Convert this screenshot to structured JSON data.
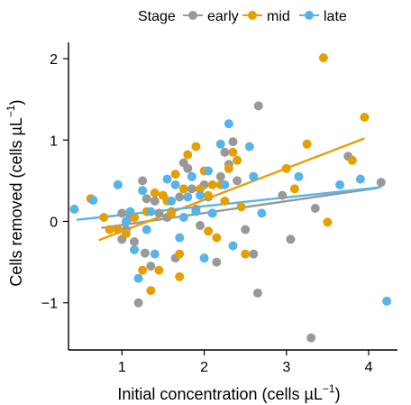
{
  "chart_data": {
    "type": "scatter",
    "title": "",
    "xlabel": "Initial concentration (cells µL",
    "xlabel_sup": "−1",
    "xlabel_close": ")",
    "ylabel": "Cells removed (cells  µL",
    "ylabel_sup": "−1",
    "ylabel_close": ")",
    "xlim": [
      0.35,
      4.35
    ],
    "ylim": [
      -1.58,
      2.2
    ],
    "xticks": [
      1,
      2,
      3,
      4
    ],
    "yticks": [
      -1,
      0,
      1,
      2
    ],
    "xtick_labels": [
      "1",
      "2",
      "3",
      "4"
    ],
    "ytick_labels": [
      "−1",
      "0",
      "1",
      "2"
    ],
    "legend": {
      "title": "Stage",
      "placement": "top"
    },
    "series": [
      {
        "name": "early",
        "color": "#999999",
        "fit": [
          [
            0.75,
            -0.08
          ],
          [
            4.1,
            0.41
          ]
        ],
        "points": [
          [
            0.95,
            0.45
          ],
          [
            1.0,
            0.1
          ],
          [
            1.05,
            -0.1
          ],
          [
            1.1,
            0.05
          ],
          [
            1.15,
            -0.25
          ],
          [
            1.2,
            -1.0
          ],
          [
            1.25,
            0.5
          ],
          [
            1.3,
            0.28
          ],
          [
            1.35,
            -0.55
          ],
          [
            1.4,
            0.25
          ],
          [
            1.45,
            0.1
          ],
          [
            1.5,
            0.32
          ],
          [
            1.55,
            0.05
          ],
          [
            1.6,
            0.12
          ],
          [
            1.65,
            -0.45
          ],
          [
            1.7,
            0.3
          ],
          [
            1.75,
            0.72
          ],
          [
            1.8,
            0.65
          ],
          [
            1.85,
            0.4
          ],
          [
            1.9,
            0.15
          ],
          [
            1.95,
            -0.05
          ],
          [
            2.0,
            0.45
          ],
          [
            2.05,
            0.3
          ],
          [
            2.1,
            0.1
          ],
          [
            2.15,
            -0.5
          ],
          [
            2.2,
            0.55
          ],
          [
            2.25,
            0.85
          ],
          [
            2.3,
            0.7
          ],
          [
            2.35,
            0.98
          ],
          [
            2.4,
            0.5
          ],
          [
            2.5,
            -0.1
          ],
          [
            2.6,
            -0.4
          ],
          [
            2.65,
            -0.88
          ],
          [
            2.66,
            1.42
          ],
          [
            2.95,
            0.32
          ],
          [
            3.05,
            -0.22
          ],
          [
            3.3,
            -1.43
          ],
          [
            3.35,
            0.16
          ],
          [
            3.75,
            0.8
          ],
          [
            4.15,
            0.48
          ],
          [
            1.0,
            -0.22
          ],
          [
            1.28,
            -0.39
          ]
        ]
      },
      {
        "name": "mid",
        "color": "#E69F00",
        "fit": [
          [
            0.72,
            -0.23
          ],
          [
            3.95,
            1.02
          ]
        ],
        "points": [
          [
            0.62,
            0.28
          ],
          [
            0.78,
            0.05
          ],
          [
            0.85,
            -0.1
          ],
          [
            0.95,
            -0.1
          ],
          [
            1.05,
            -0.15
          ],
          [
            1.15,
            0.05
          ],
          [
            1.25,
            -0.6
          ],
          [
            1.3,
            0.12
          ],
          [
            1.35,
            -0.85
          ],
          [
            1.4,
            0.35
          ],
          [
            1.45,
            -0.6
          ],
          [
            1.5,
            0.32
          ],
          [
            1.55,
            0.25
          ],
          [
            1.6,
            0.1
          ],
          [
            1.65,
            0.58
          ],
          [
            1.7,
            -0.68
          ],
          [
            1.75,
            0.4
          ],
          [
            1.8,
            0.82
          ],
          [
            1.85,
            0.55
          ],
          [
            1.9,
            0.92
          ],
          [
            1.95,
            0.4
          ],
          [
            2.0,
            0.62
          ],
          [
            2.05,
            0.32
          ],
          [
            2.1,
            0.45
          ],
          [
            2.15,
            -0.2
          ],
          [
            2.2,
            0.45
          ],
          [
            2.25,
            0.25
          ],
          [
            2.3,
            0.65
          ],
          [
            2.35,
            0.85
          ],
          [
            2.4,
            0.75
          ],
          [
            2.45,
            0.18
          ],
          [
            2.5,
            -0.4
          ],
          [
            3.0,
            0.65
          ],
          [
            3.1,
            0.4
          ],
          [
            3.25,
            0.95
          ],
          [
            3.45,
            2.01
          ],
          [
            3.5,
            -0.01
          ],
          [
            3.8,
            0.75
          ],
          [
            3.95,
            1.28
          ],
          [
            1.7,
            -0.4
          ],
          [
            2.05,
            -0.12
          ]
        ]
      },
      {
        "name": "late",
        "color": "#56B4E9",
        "fit": [
          [
            0.45,
            0.02
          ],
          [
            4.15,
            0.42
          ]
        ],
        "points": [
          [
            0.42,
            0.15
          ],
          [
            0.65,
            0.26
          ],
          [
            0.95,
            0.45
          ],
          [
            1.1,
            0.12
          ],
          [
            1.15,
            -0.35
          ],
          [
            1.2,
            -0.7
          ],
          [
            1.25,
            0.38
          ],
          [
            1.3,
            -0.1
          ],
          [
            1.35,
            0.12
          ],
          [
            1.4,
            -0.4
          ],
          [
            1.55,
            0.52
          ],
          [
            1.6,
            0.25
          ],
          [
            1.65,
            0.45
          ],
          [
            1.7,
            -0.2
          ],
          [
            1.75,
            0.05
          ],
          [
            1.8,
            0.3
          ],
          [
            1.85,
            0.55
          ],
          [
            1.9,
            0.12
          ],
          [
            1.95,
            0.32
          ],
          [
            2.0,
            -0.45
          ],
          [
            2.05,
            0.62
          ],
          [
            2.1,
            0.1
          ],
          [
            2.2,
            0.95
          ],
          [
            2.25,
            0.45
          ],
          [
            2.3,
            1.2
          ],
          [
            2.35,
            -0.3
          ],
          [
            2.55,
            0.92
          ],
          [
            2.6,
            0.55
          ],
          [
            2.7,
            0.1
          ],
          [
            3.15,
            0.55
          ],
          [
            3.65,
            0.45
          ],
          [
            3.9,
            0.52
          ],
          [
            4.22,
            -0.98
          ],
          [
            1.05,
            0.0
          ]
        ]
      }
    ]
  }
}
